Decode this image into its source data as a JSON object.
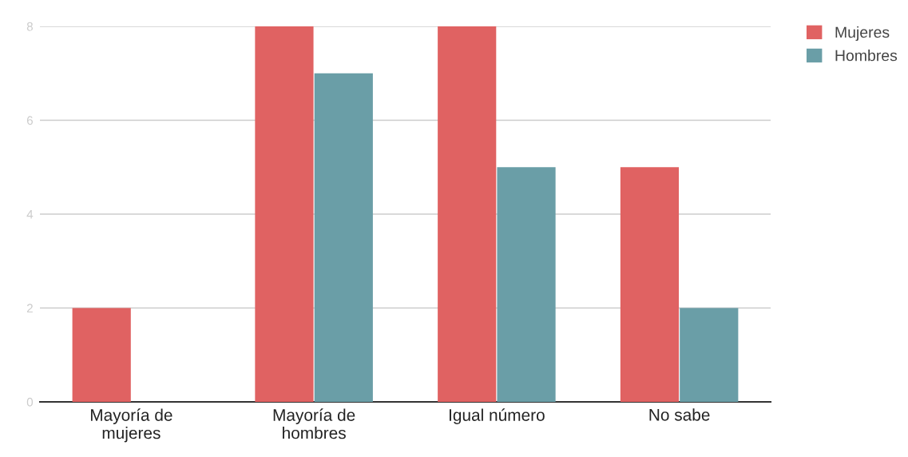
{
  "chart_data": {
    "type": "bar",
    "categories": [
      "Mayoría de mujeres",
      "Mayoría de hombres",
      "Igual número",
      "No sabe"
    ],
    "series": [
      {
        "name": "Mujeres",
        "color": "#e06262",
        "values": [
          2,
          8,
          8,
          5
        ]
      },
      {
        "name": "Hombres",
        "color": "#6a9ea7",
        "values": [
          0,
          7,
          5,
          2
        ]
      }
    ],
    "ylim": [
      0,
      8
    ],
    "yticks": [
      0,
      2,
      4,
      6,
      8
    ],
    "grid": "y",
    "legend": "top right"
  }
}
